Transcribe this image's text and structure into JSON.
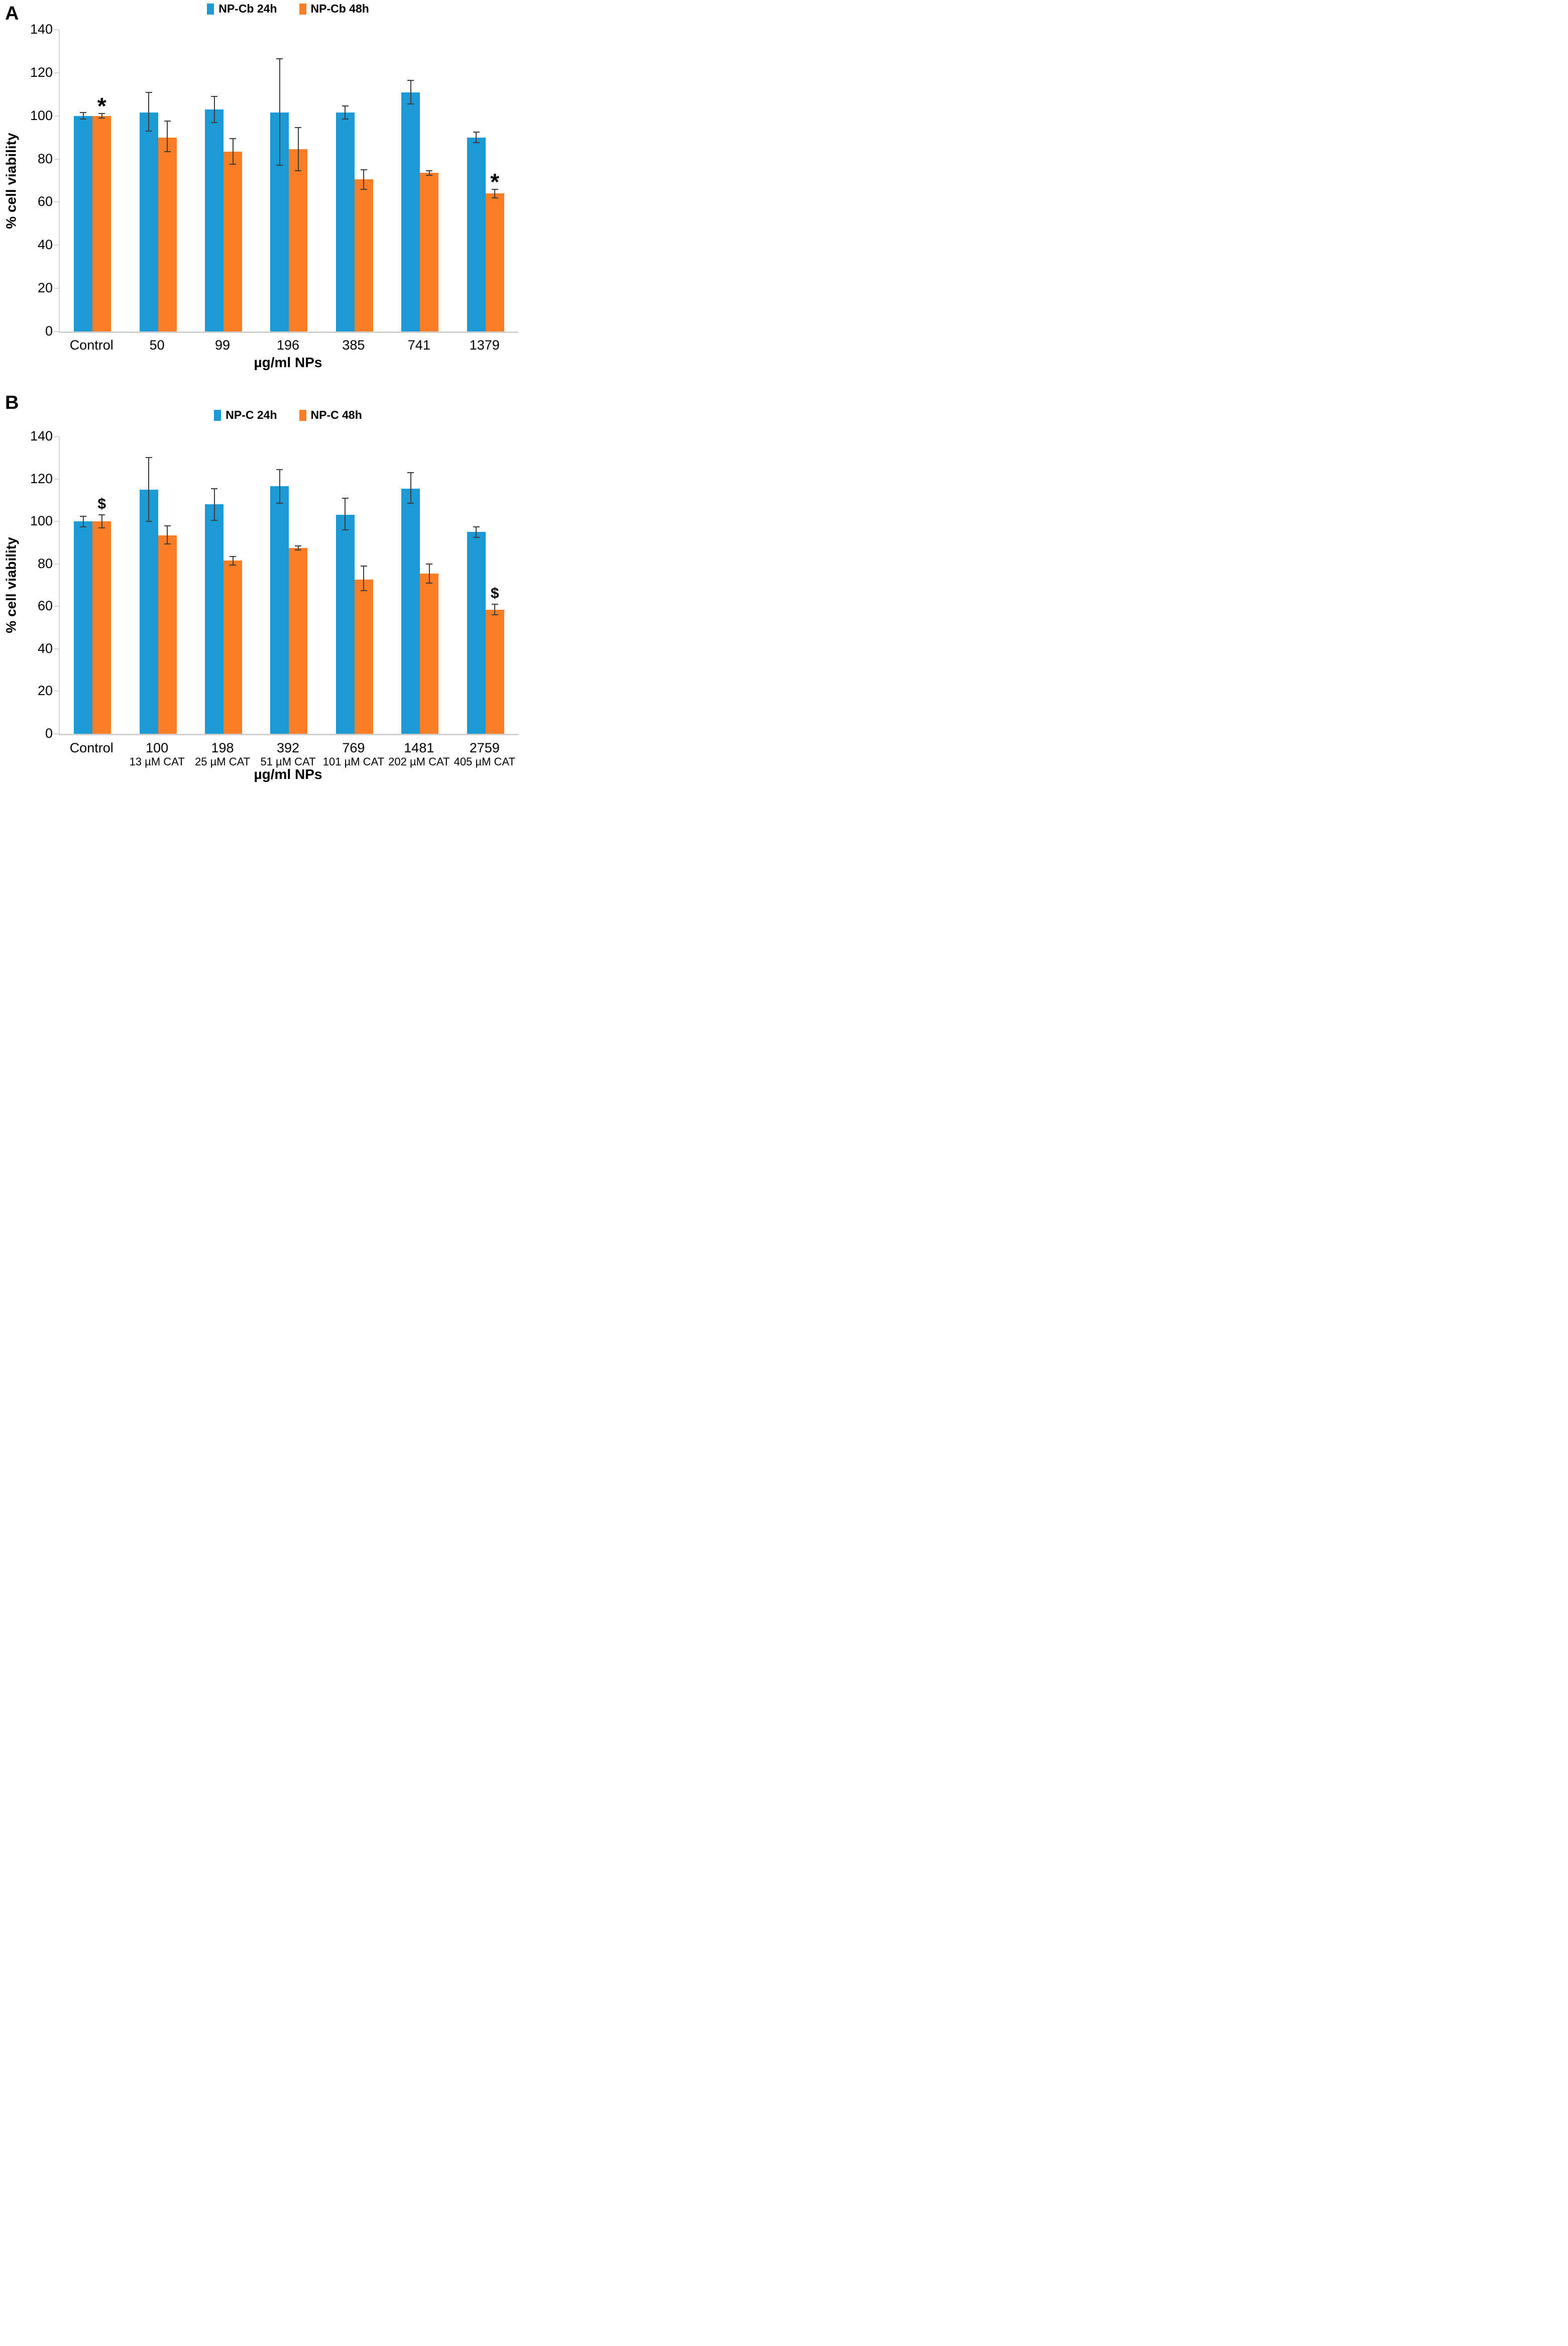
{
  "figure": {
    "background": "#ffffff"
  },
  "chart_data": [
    {
      "type": "bar",
      "panel_label": "A",
      "ylabel": "% cell viability",
      "xlabel": "µg/ml NPs",
      "ylim": [
        0,
        140
      ],
      "yticks": [
        0,
        20,
        40,
        60,
        80,
        100,
        120,
        140
      ],
      "grid": false,
      "legend_position": "top-center",
      "axis_color": "#d6d6d6",
      "error_bar_color": "#3d3d3d",
      "categories": [
        {
          "label": "Control",
          "sublabel": ""
        },
        {
          "label": "50",
          "sublabel": ""
        },
        {
          "label": "99",
          "sublabel": ""
        },
        {
          "label": "196",
          "sublabel": ""
        },
        {
          "label": "385",
          "sublabel": ""
        },
        {
          "label": "741",
          "sublabel": ""
        },
        {
          "label": "1379",
          "sublabel": ""
        }
      ],
      "series": [
        {
          "name": "NP-Cb 24h",
          "color": "#1b9ad6",
          "values": [
            100,
            101.5,
            103,
            101.5,
            101.5,
            111,
            90
          ],
          "err_up": [
            1.5,
            9.5,
            6,
            25,
            3,
            5.5,
            2.5
          ],
          "err_down": [
            1.5,
            8.5,
            6,
            24.5,
            3,
            5.5,
            2.5
          ],
          "sig": [
            "",
            "",
            "",
            "",
            "",
            "",
            ""
          ]
        },
        {
          "name": "NP-Cb 48h",
          "color": "#fb7d26",
          "values": [
            100,
            90,
            83.5,
            84.5,
            70.5,
            73.5,
            64
          ],
          "err_up": [
            1,
            7.5,
            6,
            10,
            4.5,
            1,
            2
          ],
          "err_down": [
            1,
            6.5,
            6,
            10,
            4.5,
            1,
            2
          ],
          "sig": [
            "*",
            "",
            "",
            "",
            "",
            "",
            "*"
          ]
        }
      ]
    },
    {
      "type": "bar",
      "panel_label": "B",
      "ylabel": "% cell viability",
      "xlabel": "µg/ml NPs",
      "ylim": [
        0,
        140
      ],
      "yticks": [
        0,
        20,
        40,
        60,
        80,
        100,
        120,
        140
      ],
      "grid": false,
      "legend_position": "top-center",
      "axis_color": "#d6d6d6",
      "error_bar_color": "#3d3d3d",
      "categories": [
        {
          "label": "Control",
          "sublabel": ""
        },
        {
          "label": "100",
          "sublabel": "13 µM CAT"
        },
        {
          "label": "198",
          "sublabel": "25 µM CAT"
        },
        {
          "label": "392",
          "sublabel": "51 µM CAT"
        },
        {
          "label": "769",
          "sublabel": "101 µM CAT"
        },
        {
          "label": "1481",
          "sublabel": "202 µM CAT"
        },
        {
          "label": "2759",
          "sublabel": "405 µM CAT"
        }
      ],
      "series": [
        {
          "name": "NP-C 24h",
          "color": "#1b9ad6",
          "values": [
            100,
            115,
            108,
            116.5,
            103,
            115.5,
            95
          ],
          "err_up": [
            2.5,
            15,
            7.5,
            8,
            8,
            7.5,
            2.5
          ],
          "err_down": [
            2.5,
            15,
            7.5,
            8,
            7,
            7,
            2.5
          ],
          "sig": [
            "",
            "",
            "",
            "",
            "",
            "",
            ""
          ]
        },
        {
          "name": "NP-C 48h",
          "color": "#fb7d26",
          "values": [
            100,
            93.5,
            81.5,
            87.5,
            72.5,
            75.5,
            58.5
          ],
          "err_up": [
            3,
            4.5,
            2,
            1,
            6.5,
            4.5,
            2.5
          ],
          "err_down": [
            3,
            4,
            2,
            1,
            5,
            4.5,
            2.5
          ],
          "sig": [
            "$",
            "",
            "",
            "",
            "",
            "",
            "$"
          ]
        }
      ]
    }
  ]
}
